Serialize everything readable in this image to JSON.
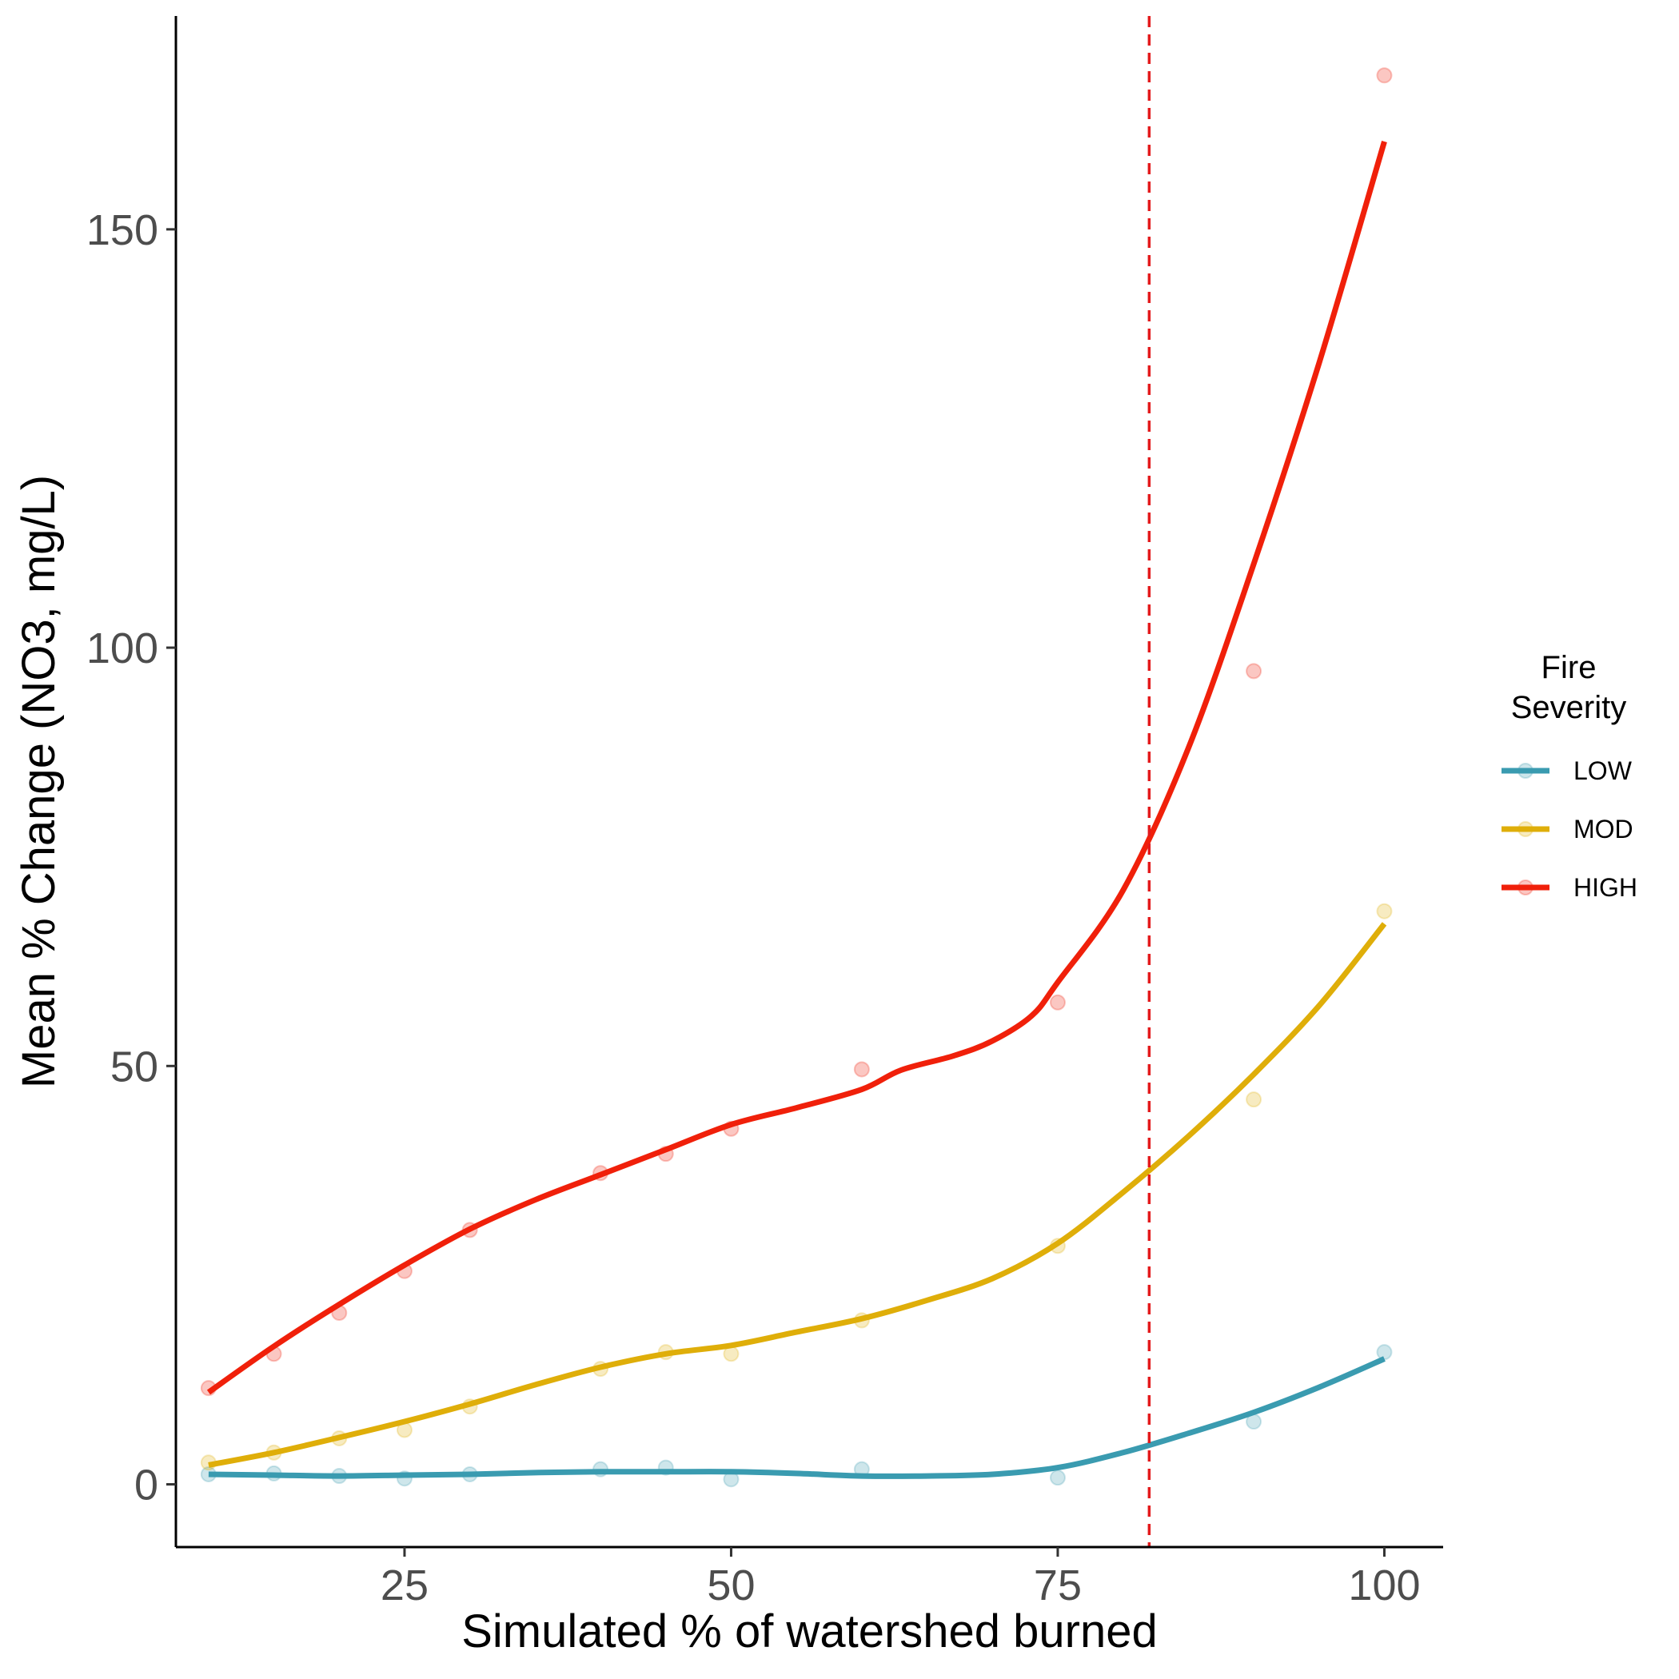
{
  "chart_data": {
    "type": "line",
    "title": "",
    "xlabel": "Simulated % of watershed burned",
    "ylabel": "Mean % Change (NO3, mg/L)",
    "xlim": [
      7.5,
      104.5
    ],
    "ylim": [
      -7.5,
      175.5
    ],
    "x_ticks": [
      25,
      50,
      75,
      100
    ],
    "y_ticks": [
      0,
      50,
      100,
      150
    ],
    "grid": false,
    "legend": {
      "title": "Fire\nSeverity",
      "position": "right"
    },
    "reference_line": {
      "x": 82,
      "color": "#e41a1c",
      "style": "dashed"
    },
    "series": [
      {
        "name": "LOW",
        "color": "#3a9bb0",
        "points": [
          [
            10,
            1.2
          ],
          [
            15,
            1.3
          ],
          [
            20,
            1.0
          ],
          [
            25,
            0.7
          ],
          [
            30,
            1.2
          ],
          [
            40,
            1.8
          ],
          [
            45,
            2.0
          ],
          [
            50,
            0.6
          ],
          [
            60,
            1.8
          ],
          [
            75,
            0.8
          ],
          [
            90,
            7.5
          ],
          [
            100,
            15.8
          ]
        ],
        "smooth": [
          [
            10,
            1.2
          ],
          [
            15,
            1.1
          ],
          [
            20,
            1.0
          ],
          [
            25,
            1.1
          ],
          [
            30,
            1.2
          ],
          [
            35,
            1.4
          ],
          [
            40,
            1.5
          ],
          [
            45,
            1.5
          ],
          [
            50,
            1.5
          ],
          [
            55,
            1.3
          ],
          [
            60,
            1.0
          ],
          [
            65,
            1.0
          ],
          [
            70,
            1.2
          ],
          [
            75,
            2.0
          ],
          [
            80,
            3.8
          ],
          [
            85,
            6.1
          ],
          [
            90,
            8.6
          ],
          [
            95,
            11.6
          ],
          [
            100,
            15.0
          ]
        ]
      },
      {
        "name": "MOD",
        "color": "#dfae09",
        "points": [
          [
            10,
            2.6
          ],
          [
            15,
            3.8
          ],
          [
            20,
            5.5
          ],
          [
            25,
            6.5
          ],
          [
            30,
            9.3
          ],
          [
            40,
            13.8
          ],
          [
            45,
            15.8
          ],
          [
            50,
            15.6
          ],
          [
            60,
            19.6
          ],
          [
            75,
            28.5
          ],
          [
            90,
            46.0
          ],
          [
            100,
            68.5
          ]
        ],
        "smooth": [
          [
            10,
            2.3
          ],
          [
            15,
            3.8
          ],
          [
            20,
            5.6
          ],
          [
            25,
            7.5
          ],
          [
            30,
            9.6
          ],
          [
            35,
            11.9
          ],
          [
            40,
            14.0
          ],
          [
            45,
            15.6
          ],
          [
            50,
            16.6
          ],
          [
            55,
            18.2
          ],
          [
            60,
            19.8
          ],
          [
            65,
            22.0
          ],
          [
            70,
            24.6
          ],
          [
            75,
            28.8
          ],
          [
            80,
            34.9
          ],
          [
            85,
            41.6
          ],
          [
            90,
            49.0
          ],
          [
            95,
            57.2
          ],
          [
            100,
            67.0
          ]
        ]
      },
      {
        "name": "HIGH",
        "color": "#f0200a",
        "points": [
          [
            10,
            11.5
          ],
          [
            15,
            15.6
          ],
          [
            20,
            20.5
          ],
          [
            25,
            25.5
          ],
          [
            30,
            30.4
          ],
          [
            40,
            37.2
          ],
          [
            45,
            39.5
          ],
          [
            50,
            42.5
          ],
          [
            60,
            49.6
          ],
          [
            75,
            57.6
          ],
          [
            90,
            97.2
          ],
          [
            100,
            168.4
          ]
        ],
        "smooth": [
          [
            10,
            11.0
          ],
          [
            15,
            16.5
          ],
          [
            20,
            21.5
          ],
          [
            25,
            26.2
          ],
          [
            30,
            30.5
          ],
          [
            35,
            34.0
          ],
          [
            40,
            37.0
          ],
          [
            45,
            40.0
          ],
          [
            50,
            43.0
          ],
          [
            55,
            45.0
          ],
          [
            60,
            47.2
          ],
          [
            63,
            49.5
          ],
          [
            67,
            51.2
          ],
          [
            70,
            53.0
          ],
          [
            73,
            56.0
          ],
          [
            75,
            60.0
          ],
          [
            80,
            71.0
          ],
          [
            85,
            88.0
          ],
          [
            90,
            110.0
          ],
          [
            95,
            134.0
          ],
          [
            100,
            160.5
          ]
        ]
      }
    ]
  }
}
